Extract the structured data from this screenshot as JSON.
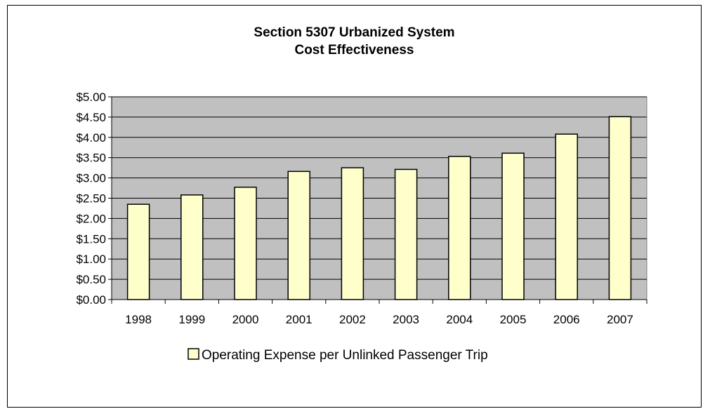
{
  "chart_data": {
    "type": "bar",
    "title_line1": "Section 5307  Urbanized System",
    "title_line2": "Cost Effectiveness",
    "categories": [
      "1998",
      "1999",
      "2000",
      "2001",
      "2002",
      "2003",
      "2004",
      "2005",
      "2006",
      "2007"
    ],
    "series": [
      {
        "name": "Operating Expense per Unlinked Passenger Trip",
        "values": [
          2.35,
          2.58,
          2.77,
          3.16,
          3.25,
          3.21,
          3.53,
          3.61,
          4.08,
          4.51
        ]
      }
    ],
    "ylim": [
      0,
      5
    ],
    "yticks": [
      "$0.00",
      "$0.50",
      "$1.00",
      "$1.50",
      "$2.00",
      "$2.50",
      "$3.00",
      "$3.50",
      "$4.00",
      "$4.50",
      "$5.00"
    ],
    "xlabel": "",
    "ylabel": "",
    "grid": true,
    "legend_position": "bottom",
    "colors": {
      "plot_background": "#c0c0c0",
      "bar_fill": "#ffffcc",
      "bar_stroke": "#000000",
      "gridline": "#000000"
    }
  }
}
